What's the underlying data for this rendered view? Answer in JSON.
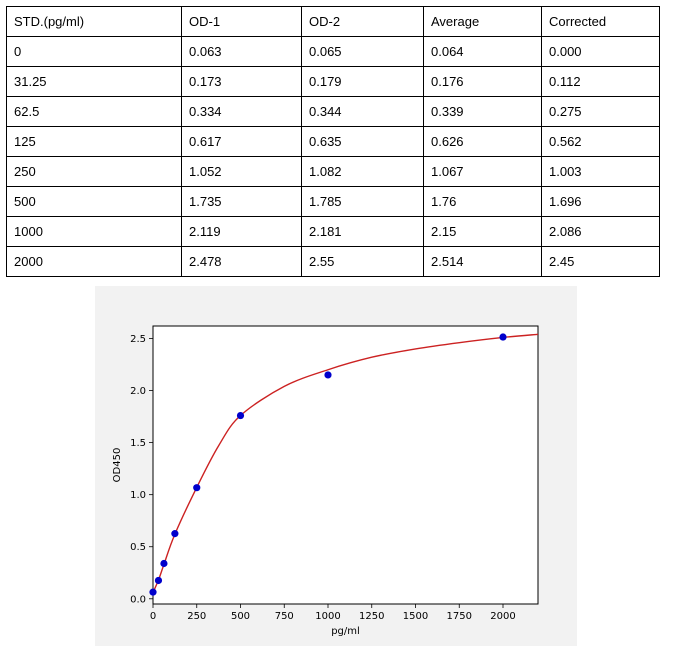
{
  "table": {
    "headers": [
      "STD.(pg/ml)",
      "OD-1",
      "OD-2",
      "Average",
      "Corrected"
    ],
    "rows": [
      [
        "0",
        "0.063",
        "0.065",
        "0.064",
        "0.000"
      ],
      [
        "31.25",
        "0.173",
        "0.179",
        "0.176",
        "0.112"
      ],
      [
        "62.5",
        "0.334",
        "0.344",
        "0.339",
        "0.275"
      ],
      [
        "125",
        "0.617",
        "0.635",
        "0.626",
        "0.562"
      ],
      [
        "250",
        "1.052",
        "1.082",
        "1.067",
        "1.003"
      ],
      [
        "500",
        "1.735",
        "1.785",
        "1.76",
        "1.696"
      ],
      [
        "1000",
        "2.119",
        "2.181",
        "2.15",
        "2.086"
      ],
      [
        "2000",
        "2.478",
        "2.55",
        "2.514",
        "2.45"
      ]
    ]
  },
  "chart_data": {
    "type": "scatter",
    "title": "",
    "xlabel": "pg/ml",
    "ylabel": "OD450",
    "xlim": [
      0,
      2200
    ],
    "ylim": [
      -0.05,
      2.62
    ],
    "xticks": [
      0,
      250,
      500,
      750,
      1000,
      1250,
      1500,
      1750,
      2000
    ],
    "yticks": [
      0.0,
      0.5,
      1.0,
      1.5,
      2.0,
      2.5
    ],
    "xtick_labels": [
      "0",
      "250",
      "500",
      "750",
      "1000",
      "1250",
      "1500",
      "1750",
      "2000"
    ],
    "ytick_labels": [
      "0.0",
      "0.5",
      "1.0",
      "1.5",
      "2.0",
      "2.5"
    ],
    "grid": true,
    "series": [
      {
        "kind": "points",
        "color": "#0000cc",
        "x": [
          0,
          31.25,
          62.5,
          125,
          250,
          500,
          1000,
          2000
        ],
        "y": [
          0.064,
          0.176,
          0.339,
          0.626,
          1.067,
          1.76,
          2.15,
          2.514
        ]
      },
      {
        "kind": "fit-curve",
        "color": "#cc2222",
        "x": [
          0,
          31.25,
          62.5,
          125,
          250,
          375,
          500,
          750,
          1000,
          1250,
          1500,
          1750,
          2000,
          2200
        ],
        "y": [
          0.06,
          0.18,
          0.33,
          0.62,
          1.07,
          1.47,
          1.76,
          2.04,
          2.2,
          2.32,
          2.4,
          2.46,
          2.51,
          2.54
        ]
      }
    ]
  }
}
